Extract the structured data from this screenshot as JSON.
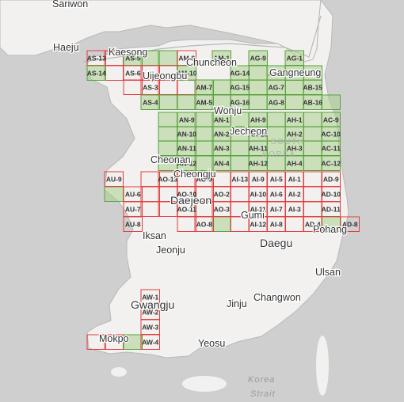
{
  "map": {
    "colors": {
      "sea": "#cfcfcf",
      "land": "#f2f1ef",
      "border": "#b8b8b8",
      "grid_outline_red": "#e23c3c",
      "grid_outline_green": "#5aa13f",
      "grid_fill_green": "#a9d08e",
      "label_dark": "#333333",
      "label_grey": "#6f6f6f",
      "sea_label": "#9a9a9a",
      "country_label": "#b3b3b3"
    },
    "city_labels": [
      "Sariwon",
      "Haeju",
      "Kaesong",
      "Uijeongbu",
      "Chuncheon",
      "Gangneung",
      "Wonju",
      "Jecheon",
      "Cheonan",
      "Cheongju",
      "Daejeon",
      "Gumi",
      "Iksan",
      "Daegu",
      "Pohang",
      "Jeonju",
      "Ulsan",
      "Gwangju",
      "Jinju",
      "Changwon",
      "Mokpo",
      "Yeosu"
    ],
    "country_label_lines": [
      "SOUTH",
      "KOREA"
    ],
    "sea_label_lines": [
      "Korea",
      "Strait"
    ],
    "grid_cells": [
      {
        "label": "AS-13",
        "state": "red"
      },
      {
        "label": "AS-14",
        "state": "green"
      },
      {
        "label": "AS-5",
        "state": "green"
      },
      {
        "label": "AS-6",
        "state": "red"
      },
      {
        "label": "AS-3",
        "state": "red"
      },
      {
        "label": "AS-4",
        "state": "green"
      },
      {
        "label": "AM-8",
        "state": "red"
      },
      {
        "label": "AM-10",
        "state": "green"
      },
      {
        "label": "AM-7",
        "state": "green"
      },
      {
        "label": "AM-5",
        "state": "green"
      },
      {
        "label": "AM-1",
        "state": "green"
      },
      {
        "label": "AG-14",
        "state": "green"
      },
      {
        "label": "AG-15",
        "state": "green"
      },
      {
        "label": "AG-16",
        "state": "green"
      },
      {
        "label": "AG-9",
        "state": "green"
      },
      {
        "label": "AG-6",
        "state": "green"
      },
      {
        "label": "AG-7",
        "state": "green"
      },
      {
        "label": "AG-8",
        "state": "green"
      },
      {
        "label": "AG-1",
        "state": "green"
      },
      {
        "label": "AG-2",
        "state": "green"
      },
      {
        "label": "AB-15",
        "state": "green"
      },
      {
        "label": "AB-16",
        "state": "green"
      },
      {
        "label": "AN-9",
        "state": "green"
      },
      {
        "label": "AN-10",
        "state": "green"
      },
      {
        "label": "AN-11",
        "state": "green"
      },
      {
        "label": "AN-12",
        "state": "green"
      },
      {
        "label": "AN-1",
        "state": "green"
      },
      {
        "label": "AN-2",
        "state": "green"
      },
      {
        "label": "AN-3",
        "state": "green"
      },
      {
        "label": "AN-4",
        "state": "green"
      },
      {
        "label": "AH-9",
        "state": "green"
      },
      {
        "label": "AH-10",
        "state": "green"
      },
      {
        "label": "AH-11",
        "state": "green"
      },
      {
        "label": "AH-12",
        "state": "green"
      },
      {
        "label": "AH-1",
        "state": "green"
      },
      {
        "label": "AH-2",
        "state": "green"
      },
      {
        "label": "AH-3",
        "state": "green"
      },
      {
        "label": "AH-4",
        "state": "green"
      },
      {
        "label": "AC-9",
        "state": "green"
      },
      {
        "label": "AC-10",
        "state": "green"
      },
      {
        "label": "AC-11",
        "state": "green"
      },
      {
        "label": "AC-12",
        "state": "green"
      },
      {
        "label": "AU-9",
        "state": "red"
      },
      {
        "label": "AU-6",
        "state": "red"
      },
      {
        "label": "AU-7",
        "state": "red"
      },
      {
        "label": "AU-8",
        "state": "red"
      },
      {
        "label": "AO-13",
        "state": "red"
      },
      {
        "label": "AO-9",
        "state": "red"
      },
      {
        "label": "AO-10",
        "state": "red"
      },
      {
        "label": "AO-11",
        "state": "red"
      },
      {
        "label": "AO-2",
        "state": "red"
      },
      {
        "label": "AO-3",
        "state": "red"
      },
      {
        "label": "AO-8",
        "state": "red"
      },
      {
        "label": "AI-13",
        "state": "red"
      },
      {
        "label": "AI-9",
        "state": "red"
      },
      {
        "label": "AI-10",
        "state": "red"
      },
      {
        "label": "AI-11",
        "state": "red"
      },
      {
        "label": "AI-12",
        "state": "red"
      },
      {
        "label": "AI-5",
        "state": "red"
      },
      {
        "label": "AI-6",
        "state": "red"
      },
      {
        "label": "AI-7",
        "state": "red"
      },
      {
        "label": "AI-8",
        "state": "red"
      },
      {
        "label": "AI-1",
        "state": "red"
      },
      {
        "label": "AI-2",
        "state": "red"
      },
      {
        "label": "AI-3",
        "state": "red"
      },
      {
        "label": "AD-9",
        "state": "red"
      },
      {
        "label": "AD-10",
        "state": "red"
      },
      {
        "label": "AD-11",
        "state": "red"
      },
      {
        "label": "AD-4",
        "state": "red"
      },
      {
        "label": "AD-8",
        "state": "red"
      },
      {
        "label": "AW-1",
        "state": "red"
      },
      {
        "label": "AW-2",
        "state": "red"
      },
      {
        "label": "AW-3",
        "state": "red"
      },
      {
        "label": "AW-4",
        "state": "red"
      }
    ]
  }
}
